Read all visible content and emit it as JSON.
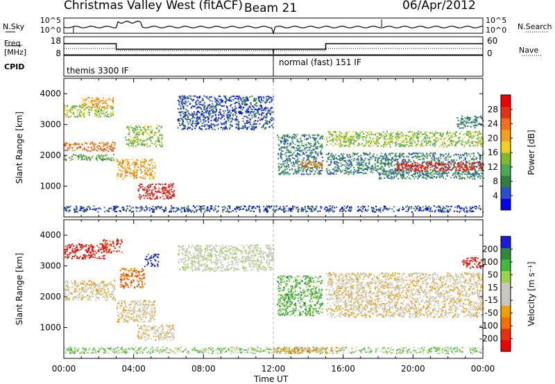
{
  "header": {
    "radar": "Christmas Valley West (fitACF)",
    "beam": "Beam 21",
    "date": "06/Apr/2012"
  },
  "status_panels": {
    "nsky_label": "N.Sky",
    "nsearch_label": "N.Search",
    "freq_label_top": "Freq.",
    "freq_label_bottom": "[MHz]",
    "nave_label": "Nave",
    "cpid_label": "CPID",
    "left_noise_ticks": [
      "10^5",
      "10^0"
    ],
    "right_noise_ticks": [
      "10^5",
      "10^0"
    ],
    "freq_ticks": [
      "18",
      "8"
    ],
    "nave_ticks": [
      "60",
      "0"
    ],
    "cpid_segments": [
      {
        "label": "themis 3300 IF",
        "start_h": 0,
        "end_h": 12
      },
      {
        "label": "normal (fast) 151 IF",
        "start_h": 12,
        "end_h": 24
      }
    ]
  },
  "chart_data": [
    {
      "type": "heatmap",
      "name": "power-panel",
      "ylabel": "Slant Range [km]",
      "yticks": [
        1000,
        2000,
        3000,
        4000
      ],
      "ylim": [
        0,
        4500
      ],
      "xlim_hours": [
        0,
        24
      ],
      "colorbar_label": "Power [dB]",
      "colorbar_ticks": [
        "4",
        "8",
        "12",
        "16",
        "20",
        "24",
        "28"
      ],
      "colors": [
        "#0000ee",
        "#2a4fcc",
        "#2f7f3f",
        "#4aaa55",
        "#7dbb2a",
        "#f0d020",
        "#f2a020",
        "#f07018",
        "#e83018",
        "#ee0000"
      ],
      "features": [
        {
          "h0": 0.0,
          "h1": 2.9,
          "r0": 2150,
          "r1": 2450,
          "level": 7
        },
        {
          "h0": 0.0,
          "h1": 2.9,
          "r0": 3250,
          "r1": 3650,
          "level": 4
        },
        {
          "h0": 1.0,
          "h1": 2.8,
          "r0": 3550,
          "r1": 3900,
          "level": 6
        },
        {
          "h0": 0.0,
          "h1": 2.9,
          "r0": 1850,
          "r1": 2050,
          "level": 3
        },
        {
          "h0": 3.0,
          "h1": 5.2,
          "r0": 1250,
          "r1": 1900,
          "level": 6
        },
        {
          "h0": 3.5,
          "h1": 5.6,
          "r0": 2300,
          "r1": 3000,
          "level": 4
        },
        {
          "h0": 4.2,
          "h1": 6.3,
          "r0": 600,
          "r1": 1100,
          "level": 9
        },
        {
          "h0": 6.5,
          "h1": 12.0,
          "r0": 2850,
          "r1": 3950,
          "level": 1
        },
        {
          "h0": 12.2,
          "h1": 14.8,
          "r0": 1400,
          "r1": 2700,
          "level": 2
        },
        {
          "h0": 13.5,
          "h1": 14.8,
          "r0": 1600,
          "r1": 1850,
          "level": 7
        },
        {
          "h0": 15.0,
          "h1": 24.0,
          "r0": 2300,
          "r1": 2800,
          "level": 4
        },
        {
          "h0": 15.0,
          "h1": 24.0,
          "r0": 1400,
          "r1": 2100,
          "level": 2
        },
        {
          "h0": 19.0,
          "h1": 24.0,
          "r0": 1500,
          "r1": 1800,
          "level": 9
        },
        {
          "h0": 18.0,
          "h1": 24.0,
          "r0": 1250,
          "r1": 1500,
          "level": 2
        },
        {
          "h0": 22.5,
          "h1": 24.0,
          "r0": 2900,
          "r1": 3300,
          "level": 2
        },
        {
          "h0": 0.0,
          "h1": 24.0,
          "r0": 180,
          "r1": 380,
          "level": 1
        }
      ]
    },
    {
      "type": "heatmap",
      "name": "velocity-panel",
      "ylabel": "Slant Range [km]",
      "yticks": [
        1000,
        2000,
        3000,
        4000
      ],
      "ylim": [
        0,
        4500
      ],
      "xlim_hours": [
        0,
        24
      ],
      "colorbar_label": "Velocity [m s⁻¹]",
      "colorbar_ticks": [
        "200",
        "100",
        "50",
        "15",
        "-15",
        "-50",
        "-100",
        "-200"
      ],
      "colors": [
        "#1a1ad8",
        "#2f8a3a",
        "#3dbb3d",
        "#9ad24a",
        "#c8c8c0",
        "#c8c8c0",
        "#f0a000",
        "#f07000",
        "#e83010",
        "#ee0000"
      ],
      "features": [
        {
          "h0": 0.0,
          "h1": 2.3,
          "r0": 3250,
          "r1": 3750,
          "level": 9
        },
        {
          "h0": 2.2,
          "h1": 3.3,
          "r0": 3450,
          "r1": 3900,
          "level": 8
        },
        {
          "h0": 0.0,
          "h1": 2.9,
          "r0": 1900,
          "r1": 2550,
          "level": 5
        },
        {
          "h0": 3.0,
          "h1": 5.2,
          "r0": 1200,
          "r1": 1900,
          "level": 5
        },
        {
          "h0": 3.2,
          "h1": 4.6,
          "r0": 2300,
          "r1": 2950,
          "level": 7
        },
        {
          "h0": 4.6,
          "h1": 5.4,
          "r0": 3000,
          "r1": 3400,
          "level": 0
        },
        {
          "h0": 4.2,
          "h1": 6.3,
          "r0": 600,
          "r1": 1100,
          "level": 5
        },
        {
          "h0": 6.5,
          "h1": 12.0,
          "r0": 2850,
          "r1": 3700,
          "level": 4
        },
        {
          "h0": 12.2,
          "h1": 14.8,
          "r0": 1400,
          "r1": 2700,
          "level": 2
        },
        {
          "h0": 15.0,
          "h1": 24.0,
          "r0": 1350,
          "r1": 2800,
          "level": 5
        },
        {
          "h0": 22.8,
          "h1": 24.0,
          "r0": 2950,
          "r1": 3300,
          "level": 9
        },
        {
          "h0": 0.0,
          "h1": 24.0,
          "r0": 180,
          "r1": 380,
          "level": 3
        },
        {
          "h0": 12.0,
          "h1": 16.0,
          "r0": 180,
          "r1": 380,
          "level": 6
        }
      ]
    }
  ],
  "x_axis": {
    "label": "Time UT",
    "ticks": [
      "00:00",
      "04:00",
      "08:00",
      "12:00",
      "16:00",
      "20:00",
      "00:00"
    ]
  }
}
